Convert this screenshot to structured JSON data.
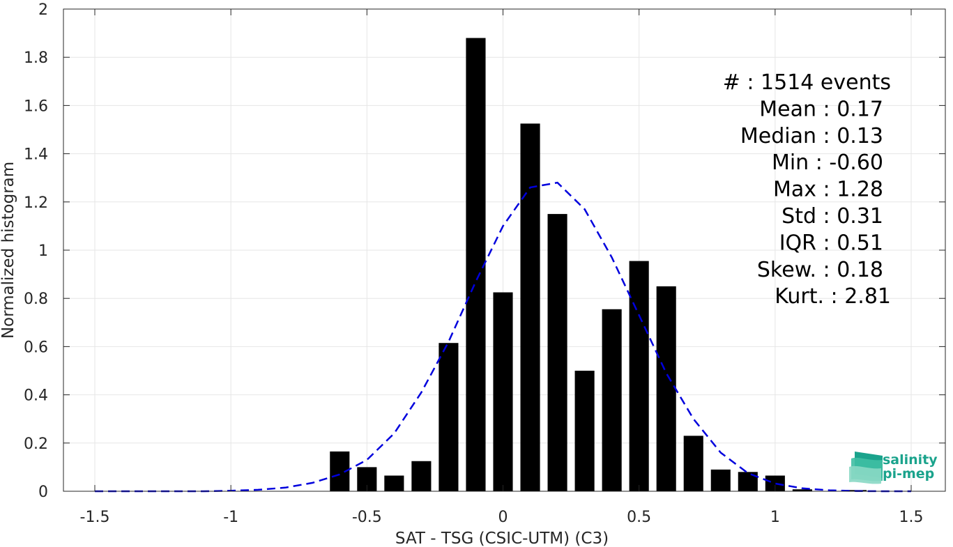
{
  "chart_data": {
    "type": "bar",
    "xlabel": "SAT - TSG (CSIC-UTM) (C3)",
    "ylabel": "Normalized histogram",
    "xlim": [
      -1.5,
      1.5
    ],
    "ylim": [
      0,
      2
    ],
    "xticks": [
      -1.5,
      -1,
      -0.5,
      0,
      0.5,
      1,
      1.5
    ],
    "xtick_labels": [
      "-1.5",
      "-1",
      "-0.5",
      "0",
      "0.5",
      "1",
      "1.5"
    ],
    "yticks": [
      0,
      0.2,
      0.4,
      0.6,
      0.8,
      1,
      1.2,
      1.4,
      1.6,
      1.8,
      2
    ],
    "ytick_labels": [
      "0",
      "0.2",
      "0.4",
      "0.6",
      "0.8",
      "1",
      "1.2",
      "1.4",
      "1.6",
      "1.8",
      "2"
    ],
    "grid": true,
    "bar_color": "#000000",
    "bin_width": 0.1,
    "bars": {
      "centers": [
        -0.6,
        -0.5,
        -0.4,
        -0.3,
        -0.2,
        -0.1,
        0.0,
        0.1,
        0.2,
        0.3,
        0.4,
        0.5,
        0.6,
        0.7,
        0.8,
        0.9,
        1.0,
        1.1,
        1.2,
        1.3
      ],
      "values": [
        0.165,
        0.1,
        0.065,
        0.125,
        0.615,
        1.88,
        0.825,
        1.525,
        1.15,
        0.5,
        0.755,
        0.955,
        0.85,
        0.23,
        0.09,
        0.08,
        0.065,
        0.008,
        0.0,
        0.005
      ]
    },
    "fit_curve": {
      "style": "dashed",
      "color": "#0000dd",
      "x": [
        -1.5,
        -1.4,
        -1.3,
        -1.2,
        -1.1,
        -1.0,
        -0.9,
        -0.8,
        -0.7,
        -0.6,
        -0.5,
        -0.4,
        -0.3,
        -0.2,
        -0.1,
        0.0,
        0.1,
        0.2,
        0.3,
        0.4,
        0.5,
        0.6,
        0.7,
        0.8,
        0.9,
        1.0,
        1.1,
        1.2,
        1.3,
        1.4,
        1.5
      ],
      "y": [
        0.0,
        0.0,
        0.0,
        0.0,
        0.0,
        0.002,
        0.006,
        0.015,
        0.035,
        0.07,
        0.13,
        0.24,
        0.41,
        0.62,
        0.87,
        1.1,
        1.26,
        1.28,
        1.17,
        0.97,
        0.73,
        0.49,
        0.3,
        0.16,
        0.075,
        0.032,
        0.012,
        0.004,
        0.001,
        0.0,
        0.0
      ]
    },
    "stats": [
      {
        "label": "#  : 1514 events"
      },
      {
        "label": "Mean : 0.17"
      },
      {
        "label": "Median : 0.13"
      },
      {
        "label": "Min : -0.60"
      },
      {
        "label": "Max : 1.28"
      },
      {
        "label": "Std : 0.31"
      },
      {
        "label": "IQR : 0.51"
      },
      {
        "label": "Skew. : 0.18"
      },
      {
        "label": "Kurt. : 2.81"
      }
    ]
  },
  "logo": {
    "line1": "salinity",
    "line2": "pi-mep",
    "colors": [
      "#1aa38c",
      "#3fbfa3",
      "#8ad8c4"
    ]
  }
}
